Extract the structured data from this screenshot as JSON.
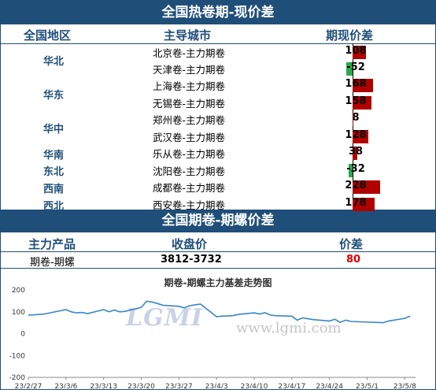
{
  "table1": {
    "title": "全国热卷期-现价差",
    "headers": {
      "region": "全国地区",
      "city": "主导城市",
      "spread": "期现价差"
    },
    "regions": [
      "华北",
      "华东",
      "华中",
      "华南",
      "东北",
      "西南",
      "西北"
    ],
    "rows": [
      {
        "city": "北京卷-主力期卷",
        "value": "108",
        "num": 108
      },
      {
        "city": "天津卷-主力期卷",
        "value": "-52",
        "num": -52
      },
      {
        "city": "上海卷-主力期卷",
        "value": "168",
        "num": 168
      },
      {
        "city": "无锡卷-主力期卷",
        "value": "158",
        "num": 158
      },
      {
        "city": "郑州卷-主力期卷",
        "value": "8",
        "num": 8
      },
      {
        "city": "武汉卷-主力期卷",
        "value": "128",
        "num": 128
      },
      {
        "city": "乐从卷-主力期卷",
        "value": "38",
        "num": 38
      },
      {
        "city": "沈阳卷-主力期卷",
        "value": "-32",
        "num": -32
      },
      {
        "city": "成都卷-主力期卷",
        "value": "228",
        "num": 228
      },
      {
        "city": "西安卷-主力期卷",
        "value": "178",
        "num": 178
      }
    ],
    "colors": {
      "positive": "#b00000",
      "negative": "#2ea84f"
    }
  },
  "table2": {
    "title": "全国期卷-期螺价差",
    "headers": {
      "product": "主力产品",
      "price": "收盘价",
      "spread": "价差"
    },
    "product": "期卷-期螺",
    "price": "3812-3732",
    "spread": "80",
    "spread_color": "#e00000"
  },
  "chart_data": {
    "type": "line",
    "title": "期卷-期螺主力基差走势图",
    "ylim": [
      -200,
      200
    ],
    "yticks": [
      "200",
      "100",
      "0",
      "-100",
      "-200"
    ],
    "xticks": [
      "23/2/27",
      "23/3/6",
      "23/3/13",
      "23/3/20",
      "23/3/27",
      "23/4/3",
      "23/4/10",
      "23/4/17",
      "23/4/24",
      "23/5/1",
      "23/5/8"
    ],
    "color": "#3a86c8",
    "points": [
      [
        "2023-02-27",
        85
      ],
      [
        "2023-02-28",
        86
      ],
      [
        "2023-03-01",
        88
      ],
      [
        "2023-03-02",
        90
      ],
      [
        "2023-03-03",
        95
      ],
      [
        "2023-03-06",
        110
      ],
      [
        "2023-03-07",
        100
      ],
      [
        "2023-03-08",
        95
      ],
      [
        "2023-03-09",
        97
      ],
      [
        "2023-03-10",
        92
      ],
      [
        "2023-03-13",
        110
      ],
      [
        "2023-03-14",
        100
      ],
      [
        "2023-03-15",
        108
      ],
      [
        "2023-03-16",
        100
      ],
      [
        "2023-03-17",
        102
      ],
      [
        "2023-03-20",
        120
      ],
      [
        "2023-03-21",
        148
      ],
      [
        "2023-03-22",
        145
      ],
      [
        "2023-03-23",
        138
      ],
      [
        "2023-03-24",
        130
      ],
      [
        "2023-03-27",
        125
      ],
      [
        "2023-03-28",
        118
      ],
      [
        "2023-03-29",
        128
      ],
      [
        "2023-03-30",
        132
      ],
      [
        "2023-03-31",
        135
      ],
      [
        "2023-04-03",
        78
      ],
      [
        "2023-04-04",
        80
      ],
      [
        "2023-04-06",
        82
      ],
      [
        "2023-04-07",
        88
      ],
      [
        "2023-04-10",
        95
      ],
      [
        "2023-04-11",
        90
      ],
      [
        "2023-04-12",
        96
      ],
      [
        "2023-04-13",
        85
      ],
      [
        "2023-04-14",
        82
      ],
      [
        "2023-04-17",
        80
      ],
      [
        "2023-04-18",
        62
      ],
      [
        "2023-04-19",
        72
      ],
      [
        "2023-04-20",
        68
      ],
      [
        "2023-04-21",
        64
      ],
      [
        "2023-04-24",
        58
      ],
      [
        "2023-04-25",
        66
      ],
      [
        "2023-04-26",
        52
      ],
      [
        "2023-04-27",
        62
      ],
      [
        "2023-04-28",
        56
      ],
      [
        "2023-05-04",
        50
      ],
      [
        "2023-05-05",
        58
      ],
      [
        "2023-05-08",
        70
      ],
      [
        "2023-05-09",
        80
      ]
    ]
  },
  "watermark": {
    "logo": "LGMI",
    "url": "www.lgmi.com"
  }
}
